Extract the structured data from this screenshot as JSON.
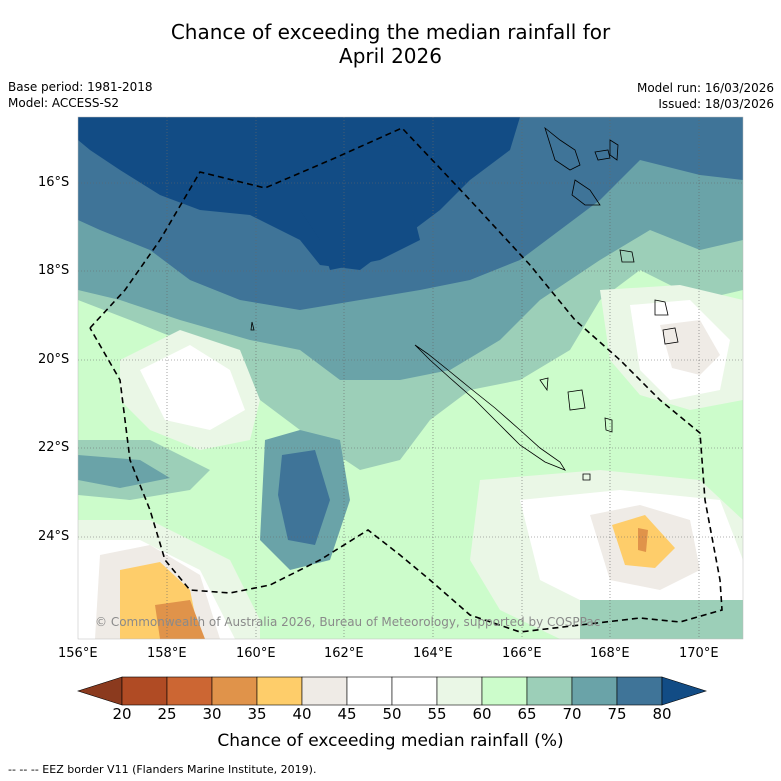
{
  "header": {
    "title_line1": "Chance of exceeding the median rainfall for",
    "title_line2": "April 2026",
    "base_period": "Base period: 1981-2018",
    "model": "Model: ACCESS-S2",
    "model_run": "Model run: 16/03/2026",
    "issued": "Issued: 18/03/2026"
  },
  "axes": {
    "lat_labels": [
      "16°S",
      "18°S",
      "20°S",
      "22°S",
      "24°S"
    ],
    "lon_labels": [
      "156°E",
      "158°E",
      "160°E",
      "162°E",
      "164°E",
      "166°E",
      "168°E",
      "170°E"
    ]
  },
  "copyright": "© Commonwealth of Australia 2026, Bureau of Meteorology, supported by COSPPac",
  "colorbar": {
    "ticks": [
      "20",
      "25",
      "30",
      "35",
      "40",
      "45",
      "50",
      "55",
      "60",
      "65",
      "70",
      "75",
      "80"
    ],
    "title": "Chance of exceeding median rainfall (%)",
    "colors": [
      "#8b3a1e",
      "#b04b24",
      "#cc6633",
      "#e0934a",
      "#fecd6a",
      "#efebe6",
      "#ffffff",
      "#ffffff",
      "#eaf7e6",
      "#ccfccb",
      "#9ccfb8",
      "#6aa3a8",
      "#3f7498",
      "#124c85"
    ]
  },
  "footer": "--  --  -- EEZ border V11 (Flanders Marine Institute, 2019)."
}
